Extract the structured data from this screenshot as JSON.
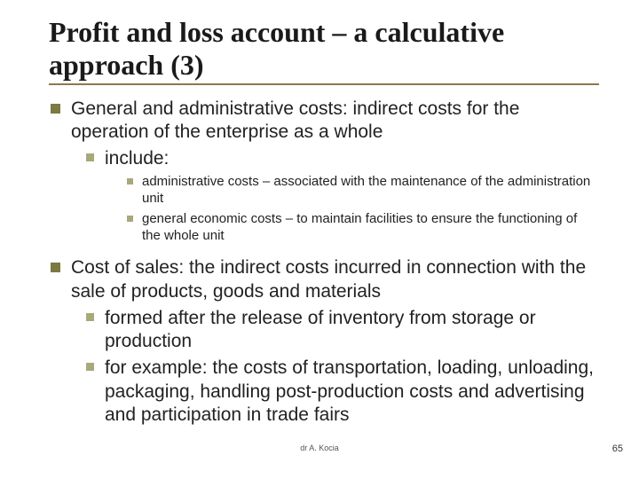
{
  "title": "Profit and loss account – a calculative approach (3)",
  "bullets": {
    "b1": "General and administrative costs: indirect costs for the operation of the enterprise as a whole",
    "b1_1": "include:",
    "b1_1_1": "administrative costs – associated with the maintenance of the administration unit",
    "b1_1_2": "general economic costs – to maintain facilities to ensure the functioning of the whole unit",
    "b2": "Cost of sales: the indirect costs incurred in connection with the sale of products, goods and materials",
    "b2_1": "formed after the release of inventory from storage or production",
    "b2_2": "for example: the costs of transportation, loading, unloading, packaging, handling post-production costs and advertising and participation in trade fairs"
  },
  "footer": {
    "author": "dr A. Kocia",
    "page": "65"
  },
  "colors": {
    "title_underline": "#8a7a4a",
    "bullet_l1": "#7a7a42",
    "bullet_l2": "#a8a87a",
    "bullet_l3": "#a8a87a",
    "background": "#ffffff"
  }
}
